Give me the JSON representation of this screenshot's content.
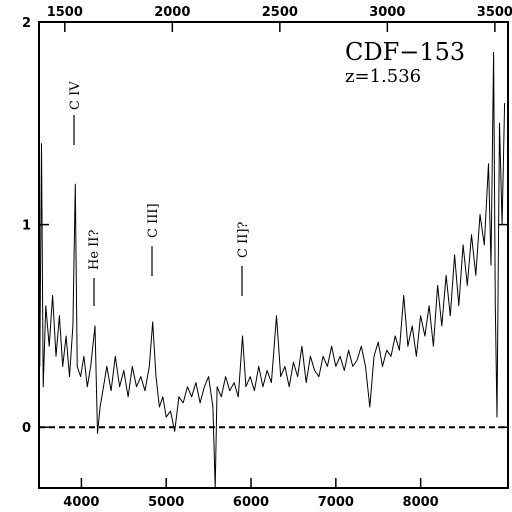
{
  "chart_data": {
    "type": "line",
    "title": "CDF−153",
    "subtitle": "z=1.536",
    "annotations": [
      "C IV",
      "He II?",
      "C III]",
      "C II]?"
    ],
    "x": [
      3510,
      3530,
      3550,
      3580,
      3620,
      3660,
      3700,
      3740,
      3780,
      3820,
      3860,
      3900,
      3928,
      3950,
      3990,
      4030,
      4070,
      4110,
      4160,
      4190,
      4220,
      4260,
      4300,
      4350,
      4400,
      4450,
      4500,
      4550,
      4600,
      4650,
      4700,
      4750,
      4800,
      4841,
      4880,
      4920,
      4960,
      5000,
      5050,
      5100,
      5150,
      5200,
      5250,
      5300,
      5350,
      5400,
      5450,
      5500,
      5550,
      5577,
      5600,
      5650,
      5700,
      5750,
      5800,
      5850,
      5900,
      5940,
      5990,
      6040,
      6090,
      6140,
      6190,
      6240,
      6300,
      6350,
      6400,
      6450,
      6500,
      6550,
      6600,
      6650,
      6700,
      6750,
      6800,
      6850,
      6900,
      6950,
      7000,
      7050,
      7100,
      7150,
      7200,
      7250,
      7300,
      7350,
      7400,
      7450,
      7500,
      7550,
      7600,
      7650,
      7700,
      7750,
      7800,
      7850,
      7900,
      7950,
      8000,
      8050,
      8100,
      8150,
      8200,
      8250,
      8300,
      8350,
      8400,
      8450,
      8500,
      8550,
      8600,
      8650,
      8700,
      8750,
      8800,
      8830,
      8860,
      8880,
      8900,
      8930,
      8960,
      8990
    ],
    "series": [
      {
        "color": "#000000",
        "values": [
          0.3,
          1.4,
          0.2,
          0.6,
          0.4,
          0.65,
          0.35,
          0.55,
          0.3,
          0.45,
          0.25,
          0.5,
          1.2,
          0.3,
          0.25,
          0.35,
          0.2,
          0.3,
          0.5,
          -0.03,
          0.1,
          0.2,
          0.3,
          0.18,
          0.35,
          0.2,
          0.28,
          0.15,
          0.3,
          0.2,
          0.25,
          0.18,
          0.3,
          0.52,
          0.25,
          0.1,
          0.15,
          0.05,
          0.08,
          -0.02,
          0.15,
          0.12,
          0.2,
          0.15,
          0.22,
          0.12,
          0.2,
          0.25,
          0.1,
          -0.3,
          0.2,
          0.15,
          0.25,
          0.18,
          0.22,
          0.15,
          0.45,
          0.2,
          0.25,
          0.18,
          0.3,
          0.2,
          0.28,
          0.22,
          0.55,
          0.25,
          0.3,
          0.2,
          0.32,
          0.25,
          0.4,
          0.22,
          0.35,
          0.28,
          0.25,
          0.35,
          0.3,
          0.4,
          0.3,
          0.35,
          0.28,
          0.38,
          0.3,
          0.33,
          0.4,
          0.3,
          0.1,
          0.35,
          0.42,
          0.3,
          0.38,
          0.35,
          0.45,
          0.38,
          0.65,
          0.4,
          0.5,
          0.35,
          0.55,
          0.45,
          0.6,
          0.4,
          0.7,
          0.5,
          0.75,
          0.55,
          0.85,
          0.6,
          0.9,
          0.7,
          0.95,
          0.75,
          1.05,
          0.9,
          1.3,
          0.8,
          1.85,
          0.6,
          0.05,
          1.5,
          1.0,
          1.6
        ]
      }
    ],
    "xlim": [
      3500,
      9030
    ],
    "xticks": [
      4000,
      5000,
      6000,
      7000,
      8000
    ],
    "x2lim": [
      1380,
      3561
    ],
    "x2ticks": [
      1500,
      2000,
      2500,
      3000,
      3500
    ],
    "ylim": [
      -0.3,
      2.0
    ],
    "yticks": [
      0,
      1,
      2
    ],
    "hline": 0
  }
}
